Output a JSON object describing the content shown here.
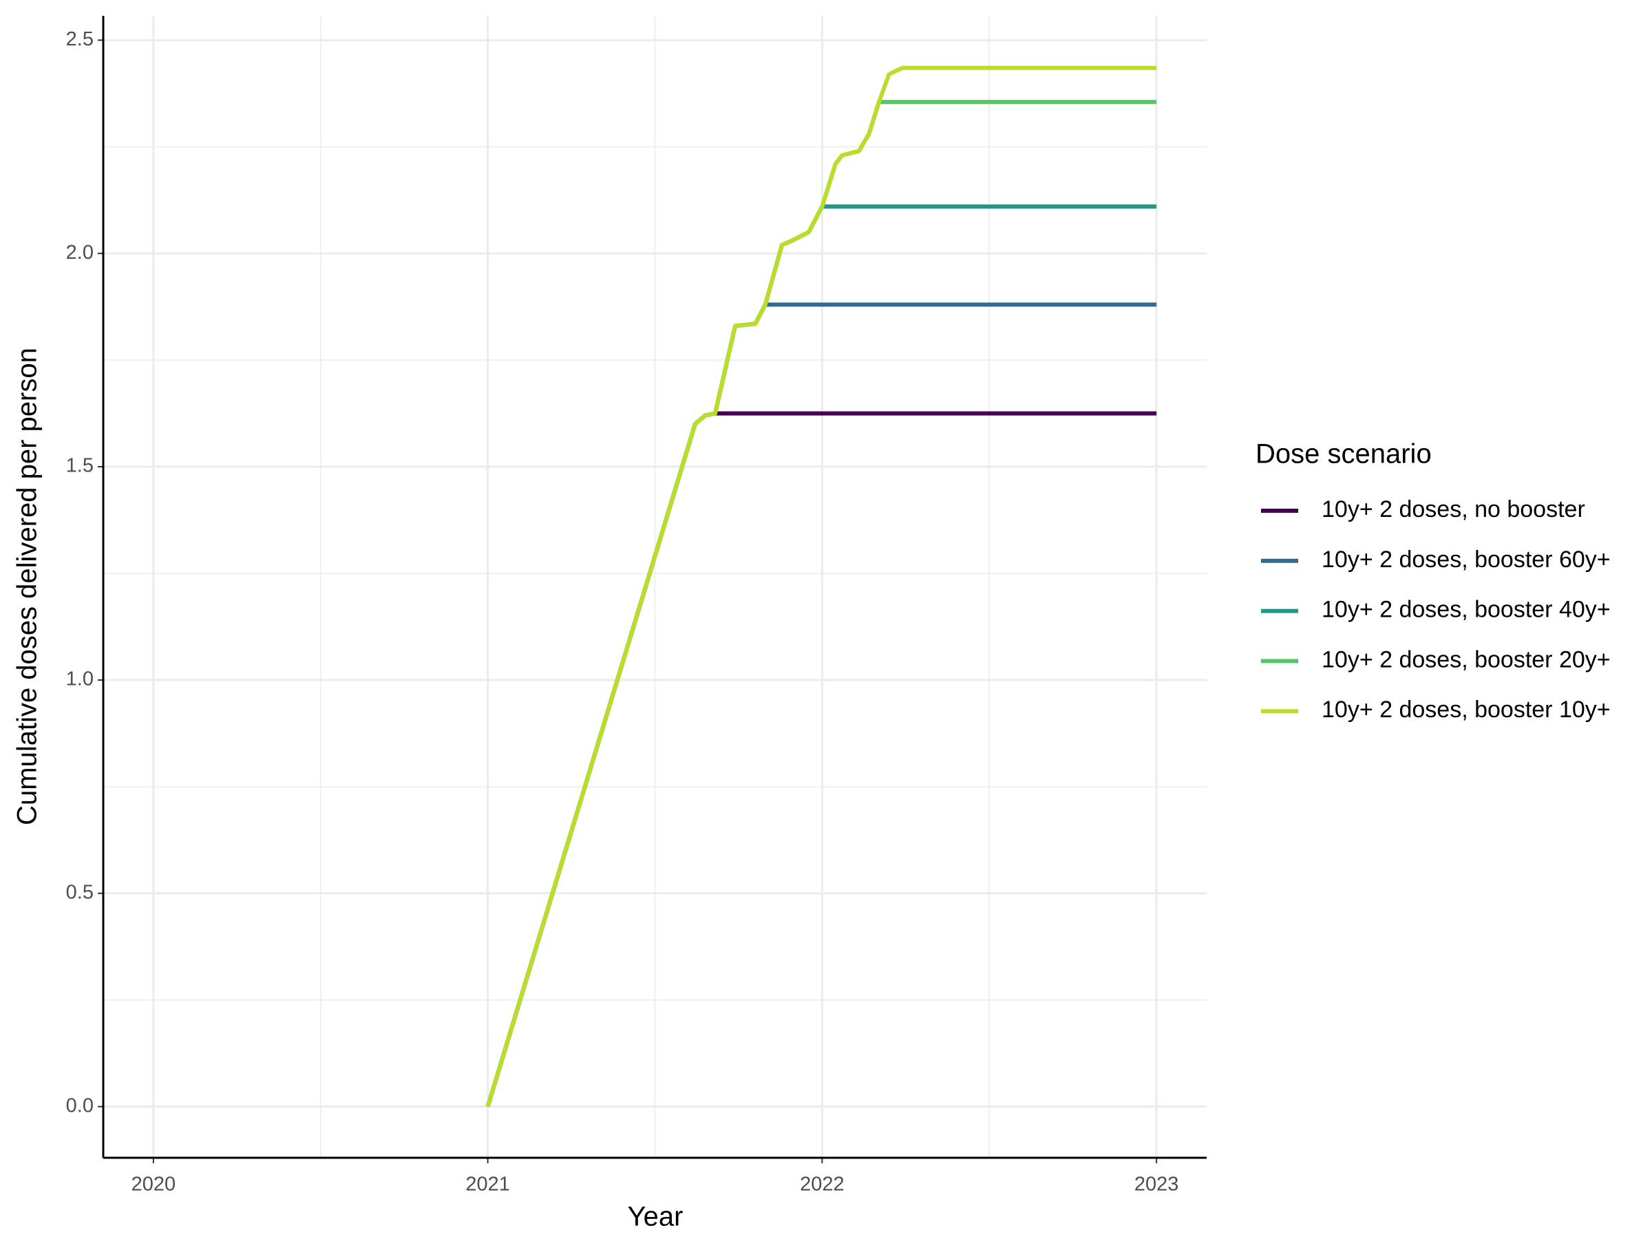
{
  "chart_data": {
    "type": "line",
    "x_label": "Year",
    "y_label": "Cumulative doses delivered per person",
    "legend_title": "Dose scenario",
    "legend_position": "right",
    "grid": true,
    "xlim": [
      2019.85,
      2023.15
    ],
    "xticks": [
      2020,
      2021,
      2022,
      2023
    ],
    "ylim": [
      -0.12,
      2.557
    ],
    "yticks": [
      {
        "value": 0,
        "label": "0.0"
      },
      0.5,
      {
        "value": 1,
        "label": "1.0"
      },
      1.5,
      {
        "value": 2,
        "label": "2.0"
      },
      2.5
    ],
    "x": [
      2021,
      2021.62,
      2021.65,
      2021.68,
      2021.74,
      2021.8,
      2021.83,
      2021.88,
      2021.91,
      2021.96,
      2022.0,
      2022.04,
      2022.06,
      2022.11,
      2022.14,
      2022.17,
      2022.2,
      2022.24,
      2023
    ],
    "series": [
      {
        "name": "10y+ 2 doses, no booster",
        "color": "#440154",
        "values": [
          0,
          1.6,
          1.62,
          1.625,
          1.625,
          1.625,
          1.625,
          1.625,
          1.625,
          1.625,
          1.625,
          1.625,
          1.625,
          1.625,
          1.625,
          1.625,
          1.625,
          1.625,
          1.625
        ]
      },
      {
        "name": "10y+ 2 doses, booster 60y+",
        "color": "#2f6b8e",
        "values": [
          0,
          1.6,
          1.62,
          1.625,
          1.83,
          1.835,
          1.88,
          1.88,
          1.88,
          1.88,
          1.88,
          1.88,
          1.88,
          1.88,
          1.88,
          1.88,
          1.88,
          1.88,
          1.88
        ]
      },
      {
        "name": "10y+ 2 doses, booster 40y+",
        "color": "#21998a",
        "values": [
          0,
          1.6,
          1.62,
          1.625,
          1.83,
          1.835,
          1.88,
          2.02,
          2.03,
          2.05,
          2.11,
          2.11,
          2.11,
          2.11,
          2.11,
          2.11,
          2.11,
          2.11,
          2.11
        ]
      },
      {
        "name": "10y+ 2 doses, booster 20y+",
        "color": "#55c667",
        "values": [
          0,
          1.6,
          1.62,
          1.625,
          1.83,
          1.835,
          1.88,
          2.02,
          2.03,
          2.05,
          2.11,
          2.21,
          2.23,
          2.24,
          2.28,
          2.355,
          2.355,
          2.355,
          2.355
        ]
      },
      {
        "name": "10y+ 2 doses, booster 10y+",
        "color": "#bade28",
        "values": [
          0,
          1.6,
          1.62,
          1.625,
          1.83,
          1.835,
          1.88,
          2.02,
          2.03,
          2.05,
          2.11,
          2.21,
          2.23,
          2.24,
          2.28,
          2.355,
          2.42,
          2.435,
          2.435
        ]
      }
    ]
  }
}
